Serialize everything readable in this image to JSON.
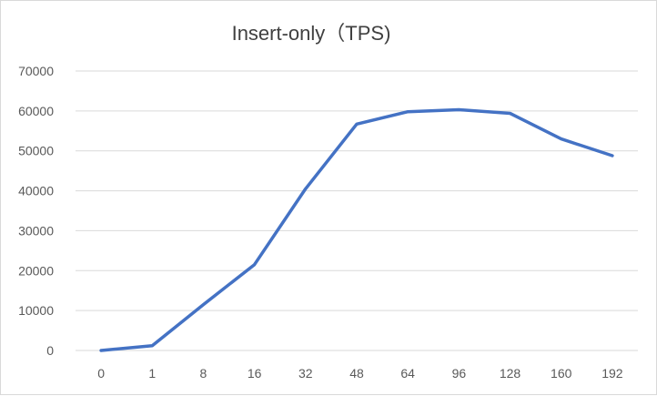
{
  "chart_data": {
    "type": "line",
    "title": "Insert-only（TPS)",
    "categories": [
      "0",
      "1",
      "8",
      "16",
      "32",
      "48",
      "64",
      "96",
      "128",
      "160",
      "192"
    ],
    "series": [
      {
        "color": "#4472c4",
        "values": [
          0,
          1200,
          11500,
          21500,
          40500,
          56700,
          59800,
          60300,
          59400,
          53000,
          48800
        ]
      }
    ],
    "ylim": [
      0,
      70000
    ],
    "yticks": [
      "0",
      "10000",
      "20000",
      "30000",
      "40000",
      "50000",
      "60000",
      "70000"
    ],
    "grid": "horizontal",
    "legend": "none"
  }
}
